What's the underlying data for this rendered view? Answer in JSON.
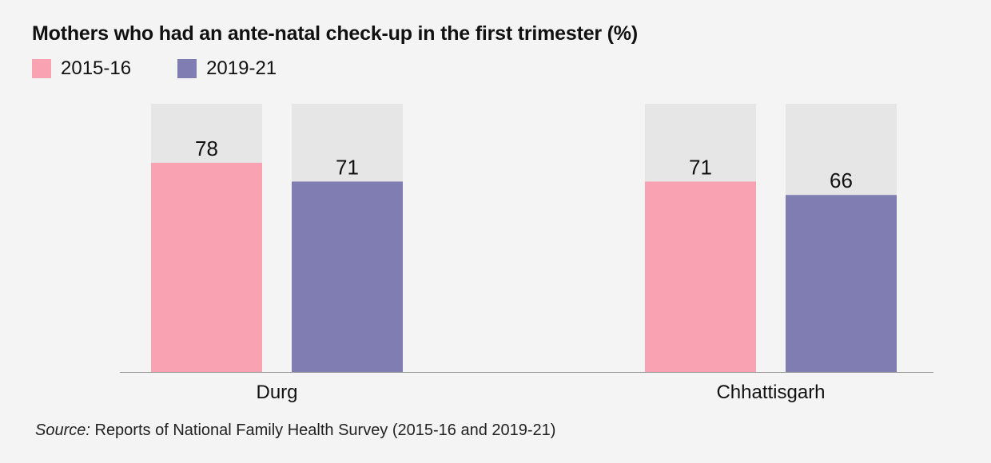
{
  "chart_data": {
    "type": "bar",
    "title": "Mothers who had an ante-natal check-up in the first trimester (%)",
    "categories": [
      "Durg",
      "Chhattisgarh"
    ],
    "series": [
      {
        "name": "2015-16",
        "values": [
          78,
          71
        ],
        "color": "#f9a3b2"
      },
      {
        "name": "2019-21",
        "values": [
          71,
          66
        ],
        "color": "#807db3"
      }
    ],
    "ylim": [
      0,
      100
    ],
    "background_bar_color": "#e6e6e6",
    "grid": false,
    "legend": "top-left"
  },
  "source": {
    "prefix": "Source:",
    "text": " Reports of National Family Health Survey (2015-16 and 2019-21)"
  }
}
